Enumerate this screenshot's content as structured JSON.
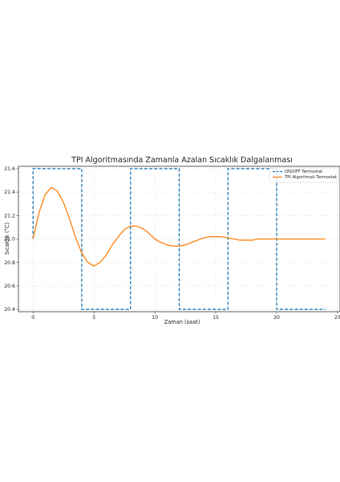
{
  "chart_data": {
    "type": "line",
    "title": "TPI Algoritmasında Zamanla Azalan Sıcaklık Dalgalanması",
    "xlabel": "Zaman (saat)",
    "ylabel": "Sıcaklık (°C)",
    "xlim": [
      -1.2,
      25.2
    ],
    "ylim": [
      20.38,
      21.62
    ],
    "xticks": [
      0,
      5,
      10,
      15,
      20,
      25
    ],
    "yticks": [
      20.4,
      20.6,
      20.8,
      21.0,
      21.2,
      21.4,
      21.6
    ],
    "grid": true,
    "legend_position": "top-right",
    "series": [
      {
        "name": "ON/OFF Termostat",
        "color": "#1f77b4",
        "style": "dashed",
        "x": [
          0,
          0,
          4,
          4,
          8,
          8,
          12,
          12,
          16,
          16,
          20,
          20,
          24
        ],
        "y": [
          21.0,
          21.6,
          21.6,
          20.4,
          20.4,
          21.6,
          21.6,
          20.4,
          20.4,
          21.6,
          21.6,
          20.4,
          20.4
        ]
      },
      {
        "name": "TPI Algoritmalı Termostat",
        "color": "#ff7f0e",
        "style": "solid",
        "x": [
          0,
          0.5,
          1,
          1.5,
          2,
          2.5,
          3,
          3.5,
          4,
          4.5,
          5,
          5.5,
          6,
          6.5,
          7,
          7.5,
          8,
          8.5,
          9,
          9.5,
          10,
          10.5,
          11,
          11.5,
          12,
          12.5,
          13,
          13.5,
          14,
          14.5,
          15,
          15.5,
          16,
          16.5,
          17,
          17.5,
          18,
          18.5,
          19,
          19.5,
          20,
          20.5,
          21,
          21.5,
          22,
          22.5,
          23,
          23.5,
          24
        ],
        "y": [
          21.0,
          21.23,
          21.38,
          21.44,
          21.41,
          21.31,
          21.17,
          21.01,
          20.88,
          20.8,
          20.77,
          20.8,
          20.86,
          20.95,
          21.02,
          21.08,
          21.11,
          21.11,
          21.09,
          21.05,
          21.0,
          20.97,
          20.95,
          20.94,
          20.94,
          20.95,
          20.97,
          20.99,
          21.01,
          21.02,
          21.02,
          21.02,
          21.01,
          21.0,
          20.99,
          20.99,
          20.99,
          21.0,
          21.0,
          21.0,
          21.0,
          21.0,
          21.0,
          21.0,
          21.0,
          21.0,
          21.0,
          21.0,
          21.0
        ]
      }
    ]
  }
}
